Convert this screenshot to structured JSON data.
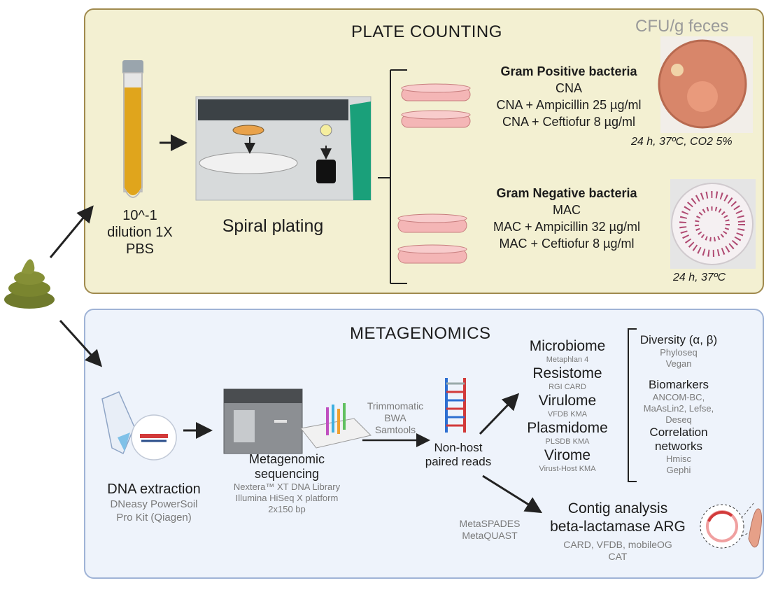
{
  "plate_counting": {
    "title": "PLATE COUNTING",
    "cfu_label": "CFU/g feces",
    "tube_label": [
      "10^-1",
      "dilution 1X",
      "PBS"
    ],
    "spiral_label": "Spiral plating",
    "gram_positive": {
      "heading": "Gram Positive bacteria",
      "media": [
        "CNA",
        "CNA + Ampicillin 25 µg/ml",
        "CNA + Ceftiofur 8 µg/ml"
      ],
      "conditions": "24 h, 37ºC, CO2 5%"
    },
    "gram_negative": {
      "heading": "Gram Negative bacteria",
      "media": [
        "MAC",
        "MAC + Ampicillin 32 µg/ml",
        "MAC + Ceftiofur 8 µg/ml"
      ],
      "conditions": "24 h, 37ºC"
    }
  },
  "metagenomics": {
    "title": "METAGENOMICS",
    "dna_extraction": {
      "title": "DNA extraction",
      "sub": [
        "DNeasy PowerSoil",
        "Pro Kit (Qiagen)"
      ]
    },
    "sequencing": {
      "title": [
        "Metagenomic",
        "sequencing"
      ],
      "sub": [
        "Nextera™ XT DNA Library",
        "Illumina HiSeq X platform",
        "2x150 bp"
      ]
    },
    "qc_tools": [
      "Trimmomatic",
      "BWA",
      "Samtools"
    ],
    "reads": [
      "Non-host",
      "paired reads"
    ],
    "omes": [
      {
        "name": "Microbiome",
        "tool": "Metaphlan 4"
      },
      {
        "name": "Resistome",
        "tool": "RGI CARD"
      },
      {
        "name": "Virulome",
        "tool": "VFDB KMA"
      },
      {
        "name": "Plasmidome",
        "tool": "PLSDB KMA"
      },
      {
        "name": "Virome",
        "tool": "Virust-Host KMA"
      }
    ],
    "analyses": [
      {
        "name": "Diversity (α, β)",
        "tools": [
          "Phyloseq",
          "Vegan"
        ]
      },
      {
        "name": "Biomarkers",
        "tools": [
          "ANCOM-BC,",
          "MaAsLin2, Lefse,",
          "Deseq"
        ]
      },
      {
        "name": [
          "Correlation",
          "networks"
        ],
        "tools": [
          "Hmisc",
          "Gephi"
        ]
      }
    ],
    "assembly_tools": [
      "MetaSPADES",
      "MetaQUAST"
    ],
    "contig": {
      "title": [
        "Contig analysis",
        "beta-lactamase ARG"
      ],
      "tools": [
        "CARD, VFDB, mobileOG",
        "CAT"
      ]
    }
  },
  "colors": {
    "plate_bg": "#f3f0d2",
    "plate_border": "#a08a4e",
    "meta_bg": "#eef3fb",
    "meta_border": "#9fb3d6",
    "feces": "#6f7a2c",
    "agar_pink": "#f4b6b6",
    "tube_liquid": "#e0a51c"
  }
}
